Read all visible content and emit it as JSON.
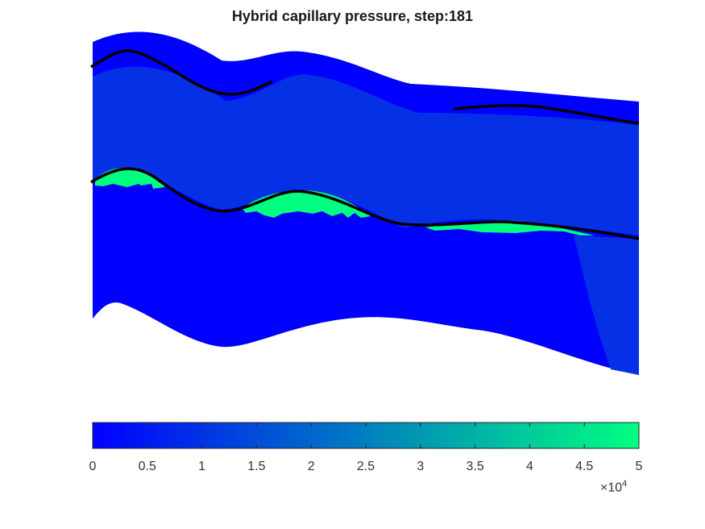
{
  "chart_data": {
    "type": "heatmap",
    "title": "Hybrid capillary pressure, step:181",
    "colorbar": {
      "orientation": "horizontal",
      "range": [
        0,
        50000
      ],
      "ticks": [
        0,
        0.5,
        1,
        1.5,
        2,
        2.5,
        3,
        3.5,
        4,
        4.5,
        5
      ],
      "tick_labels": [
        "0",
        "0.5",
        "1",
        "1.5",
        "2",
        "2.5",
        "3",
        "3.5",
        "4",
        "4.5",
        "5"
      ],
      "multiplier_text": "×10",
      "multiplier_exponent": "4",
      "colormap": [
        "#0000ff",
        "#00ff80"
      ]
    },
    "field": {
      "background_value": 0,
      "upper_layer_value": 8000,
      "right_zone_value": 8000,
      "interface_value": 50000
    },
    "overlay_lines": {
      "color": "#000000",
      "count": 3
    },
    "grid": false,
    "axes_visible": false
  }
}
